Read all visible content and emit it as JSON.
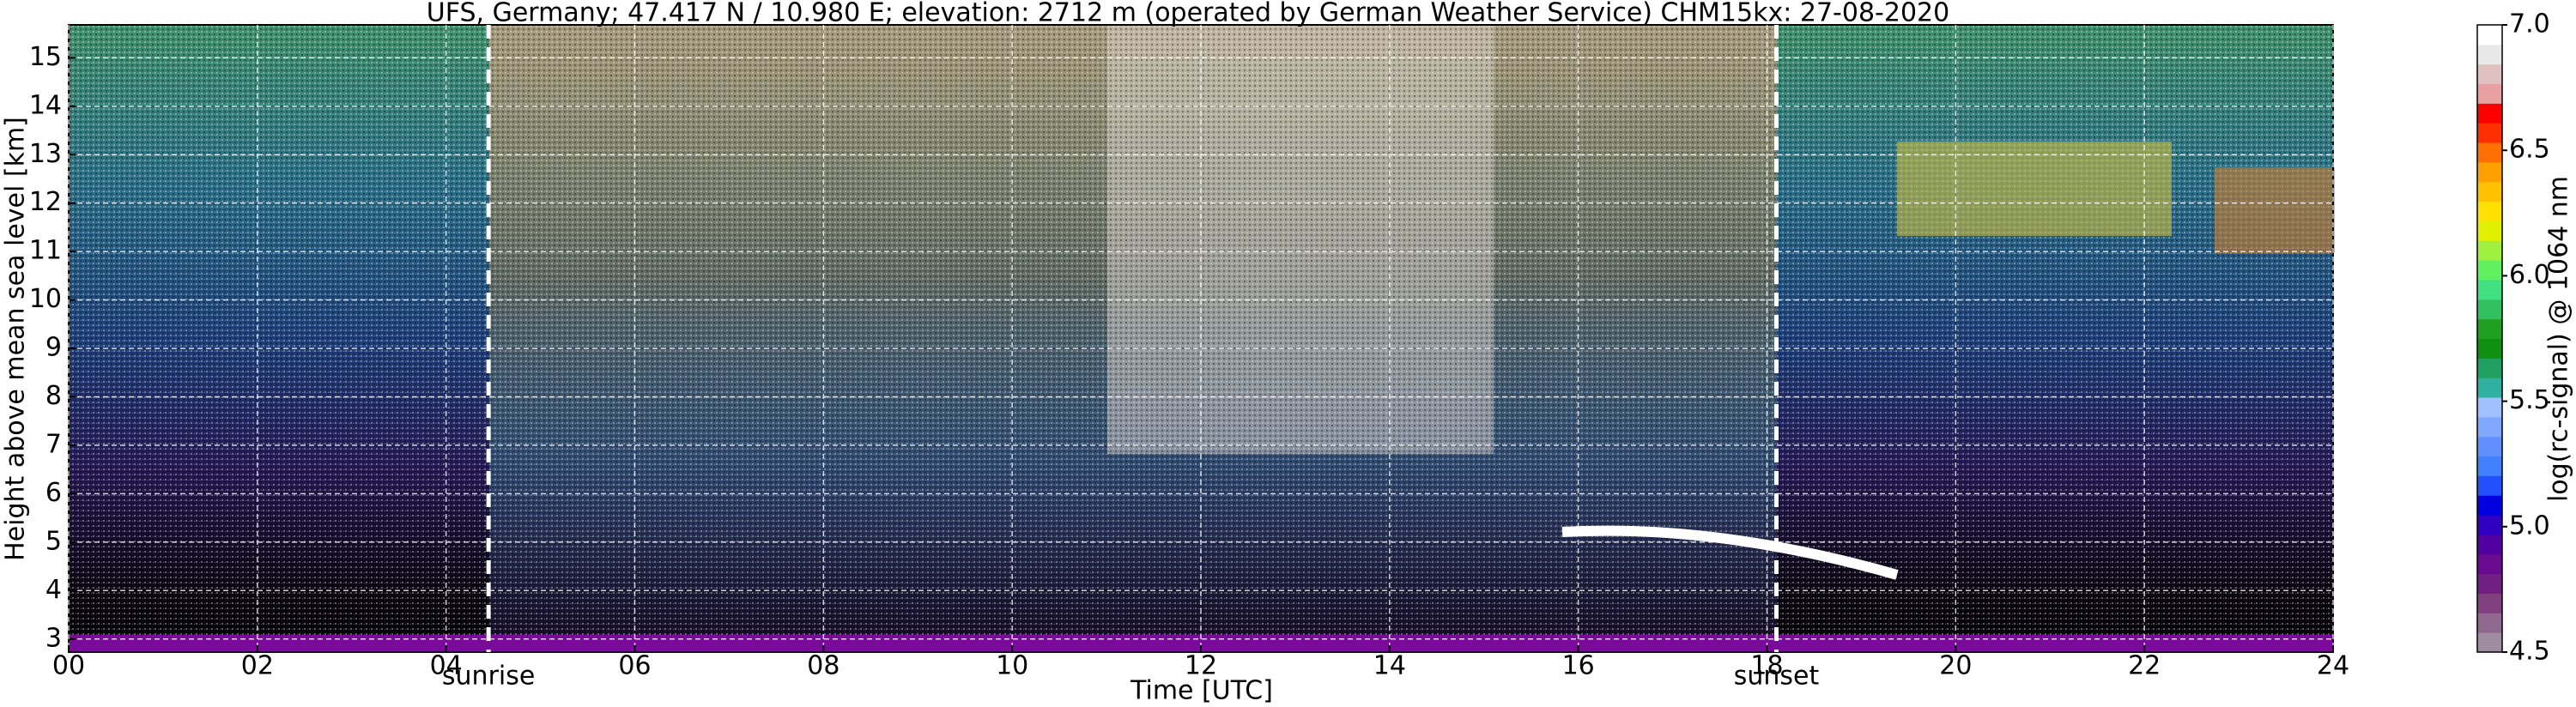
{
  "chart_data": {
    "type": "heatmap",
    "title": "UFS, Germany; 47.417 N / 10.980 E; elevation: 2712 m  (operated by German Weather Service)    CHM15kx: 27-08-2020",
    "x_label": "Time [UTC]",
    "y_label": "Height above mean sea level [km]",
    "xlim": [
      0,
      24
    ],
    "ylim": [
      2.73,
      15.68
    ],
    "xticks": [
      {
        "value": 0,
        "label": "00"
      },
      {
        "value": 2,
        "label": "02"
      },
      {
        "value": 4,
        "label": "04"
      },
      {
        "value": 6,
        "label": "06"
      },
      {
        "value": 8,
        "label": "08"
      },
      10,
      12,
      14,
      16,
      18,
      20,
      22,
      24
    ],
    "yticks": [
      3,
      4,
      5,
      6,
      7,
      8,
      9,
      10,
      11,
      12,
      13,
      14,
      15
    ],
    "grid": true,
    "annotations": [
      {
        "text": "sunrise",
        "x": 4.45
      },
      {
        "text": "sunset",
        "x": 18.1
      }
    ],
    "colorbar": {
      "label": "log(rc-signal) @ 1064 nm",
      "lim": [
        4.5,
        7.0
      ],
      "ticks": [
        4.5,
        {
          "value": 5,
          "label": "5.0"
        },
        5.5,
        {
          "value": 6,
          "label": "6.0"
        },
        6.5,
        {
          "value": 7,
          "label": "7.0"
        }
      ],
      "colors": [
        "#a08ca0",
        "#906890",
        "#804080",
        "#702080",
        "#6a0a90",
        "#5000a0",
        "#3000c0",
        "#0000e0",
        "#2050ff",
        "#4080ff",
        "#6090ff",
        "#80a8ff",
        "#a0c0ff",
        "#30b0a0",
        "#20a060",
        "#109010",
        "#20a020",
        "#30c060",
        "#40e080",
        "#60f060",
        "#a0f040",
        "#e0f000",
        "#ffe000",
        "#ffc000",
        "#ffa000",
        "#ff7000",
        "#ff3000",
        "#ff0000",
        "#e8a0a0",
        "#e0c0c0",
        "#e8e8e8",
        "#ffffff"
      ]
    }
  }
}
